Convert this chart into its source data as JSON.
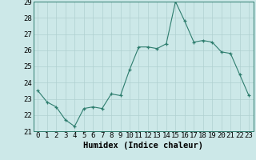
{
  "x": [
    0,
    1,
    2,
    3,
    4,
    5,
    6,
    7,
    8,
    9,
    10,
    11,
    12,
    13,
    14,
    15,
    16,
    17,
    18,
    19,
    20,
    21,
    22,
    23
  ],
  "y": [
    23.5,
    22.8,
    22.5,
    21.7,
    21.3,
    22.4,
    22.5,
    22.4,
    23.3,
    23.2,
    24.8,
    26.2,
    26.2,
    26.1,
    26.4,
    29.0,
    27.8,
    26.5,
    26.6,
    26.5,
    25.9,
    25.8,
    24.5,
    23.2
  ],
  "ylim": [
    21,
    29
  ],
  "yticks": [
    21,
    22,
    23,
    24,
    25,
    26,
    27,
    28,
    29
  ],
  "xticks": [
    0,
    1,
    2,
    3,
    4,
    5,
    6,
    7,
    8,
    9,
    10,
    11,
    12,
    13,
    14,
    15,
    16,
    17,
    18,
    19,
    20,
    21,
    22,
    23
  ],
  "xlabel": "Humidex (Indice chaleur)",
  "line_color": "#2e7d6e",
  "marker": "+",
  "bg_color": "#cce8e8",
  "grid_color": "#b0d0d0",
  "tick_label_fontsize": 6.5,
  "xlabel_fontsize": 7.5
}
